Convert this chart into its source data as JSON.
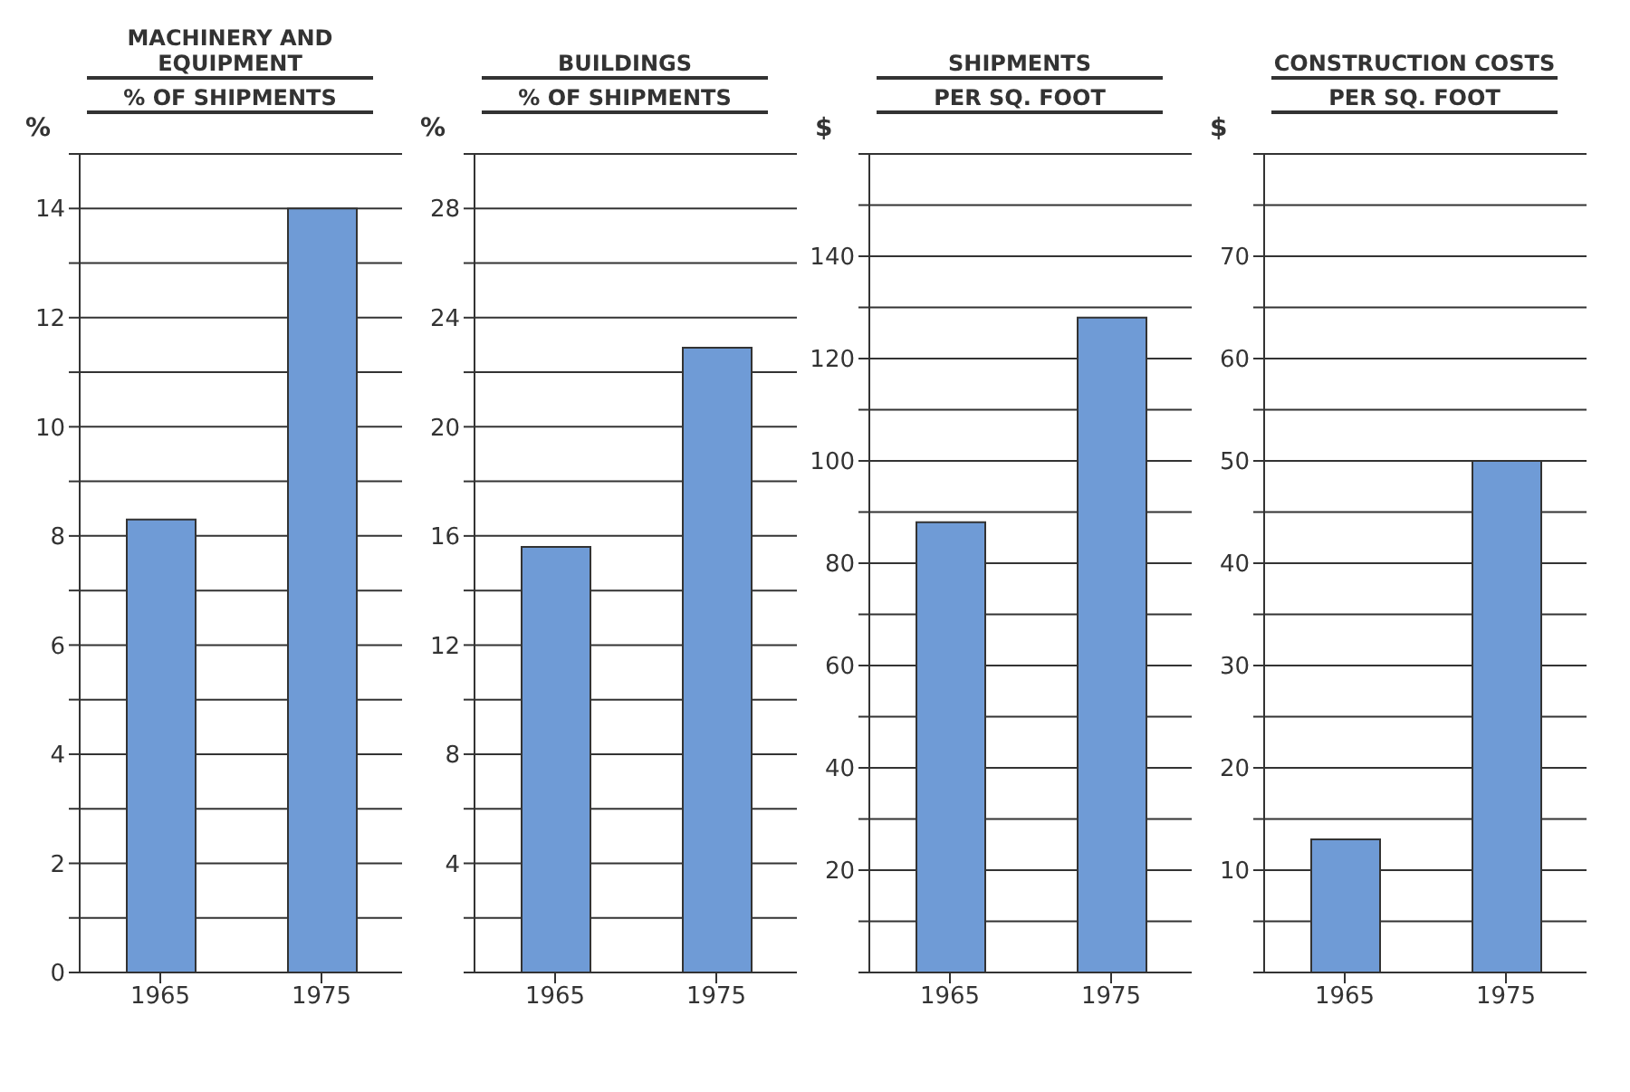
{
  "chart_data": [
    {
      "type": "bar",
      "title": "MACHINERY AND EQUIPMENT",
      "subtitle": "% OF SHIPMENTS",
      "ylabel": "%",
      "categories": [
        "1965",
        "1975"
      ],
      "values": [
        8.3,
        14.0
      ],
      "color": "#6f9bd6",
      "ylim": [
        0,
        15
      ],
      "grid": "y",
      "yticks": [
        0,
        {
          "value": 1,
          "label": null
        },
        2,
        {
          "value": 3,
          "label": null
        },
        4,
        {
          "value": 5,
          "label": null
        },
        6,
        {
          "value": 7,
          "label": null
        },
        8,
        {
          "value": 9,
          "label": null
        },
        10,
        {
          "value": 11,
          "label": null
        },
        12,
        {
          "value": 13,
          "label": null
        },
        14,
        {
          "value": 15,
          "label": null
        }
      ]
    },
    {
      "type": "bar",
      "title": "BUILDINGS",
      "subtitle": "% OF SHIPMENTS",
      "ylabel": "%",
      "categories": [
        "1965",
        "1975"
      ],
      "values": [
        15.6,
        22.9
      ],
      "color": "#6f9bd6",
      "ylim": [
        0,
        30
      ],
      "grid": "y",
      "yticks": [
        {
          "value": 0,
          "label": null
        },
        {
          "value": 2,
          "label": null
        },
        4,
        {
          "value": 6,
          "label": null
        },
        8,
        {
          "value": 10,
          "label": null
        },
        12,
        {
          "value": 14,
          "label": null
        },
        16,
        {
          "value": 18,
          "label": null
        },
        20,
        {
          "value": 22,
          "label": null
        },
        24,
        {
          "value": 26,
          "label": null
        },
        28,
        {
          "value": 30,
          "label": null
        }
      ]
    },
    {
      "type": "bar",
      "title": "SHIPMENTS",
      "subtitle": "PER SQ. FOOT",
      "ylabel": "$",
      "categories": [
        "1965",
        "1975"
      ],
      "values": [
        88,
        128
      ],
      "color": "#6f9bd6",
      "ylim": [
        0,
        160
      ],
      "grid": "y",
      "yticks": [
        {
          "value": 0,
          "label": null
        },
        {
          "value": 10,
          "label": null
        },
        20,
        {
          "value": 30,
          "label": null
        },
        40,
        {
          "value": 50,
          "label": null
        },
        60,
        {
          "value": 70,
          "label": null
        },
        80,
        {
          "value": 90,
          "label": null
        },
        100,
        {
          "value": 110,
          "label": null
        },
        120,
        {
          "value": 130,
          "label": null
        },
        140,
        {
          "value": 150,
          "label": null
        },
        {
          "value": 160,
          "label": null
        }
      ]
    },
    {
      "type": "bar",
      "title": "CONSTRUCTION COSTS",
      "subtitle": "PER SQ. FOOT",
      "ylabel": "$",
      "categories": [
        "1965",
        "1975"
      ],
      "values": [
        13,
        50
      ],
      "color": "#6f9bd6",
      "ylim": [
        0,
        80
      ],
      "grid": "y",
      "yticks": [
        {
          "value": 0,
          "label": null
        },
        {
          "value": 5,
          "label": null
        },
        10,
        {
          "value": 15,
          "label": null
        },
        20,
        {
          "value": 25,
          "label": null
        },
        30,
        {
          "value": 35,
          "label": null
        },
        40,
        {
          "value": 45,
          "label": null
        },
        50,
        {
          "value": 55,
          "label": null
        },
        60,
        {
          "value": 65,
          "label": null
        },
        70,
        {
          "value": 75,
          "label": null
        },
        {
          "value": 80,
          "label": null
        }
      ]
    }
  ]
}
